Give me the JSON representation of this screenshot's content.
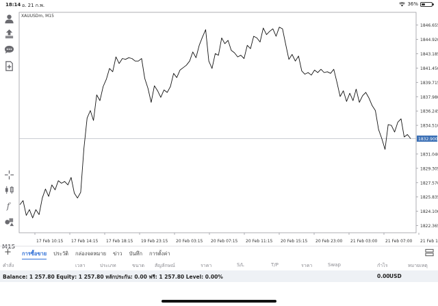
{
  "status_bar": {
    "time": "18:14",
    "date": "อ. 21 ก.พ.",
    "battery": "36%",
    "battery_level": 0.36
  },
  "toolbar": {
    "icons": [
      "account-icon",
      "trade-icon",
      "chat-icon",
      "new-order-icon",
      "crosshair-icon",
      "indicators-icon",
      "function-icon",
      "objects-icon"
    ],
    "timeframe": "M15"
  },
  "chart": {
    "symbol_label": "XAUUSDm, M15",
    "current_price": "1832.900",
    "current_price_value": 1832.9,
    "line_color": "#111111",
    "price_tag_color": "#3a6fb5",
    "chart_data": {
      "type": "line",
      "ylim": [
        1821.5,
        1848.2
      ],
      "y_ticks": [
        "1846.655",
        "1844.920",
        "1843.185",
        "1841.450",
        "1839.715",
        "1837.980",
        "1836.245",
        "1834.510",
        "1832.900",
        "1831.040",
        "1829.305",
        "1827.570",
        "1825.835",
        "1824.100",
        "1822.365"
      ],
      "x_ticks": [
        "17 Feb 10:15",
        "17 Feb 14:15",
        "17 Feb 18:15",
        "19 Feb 23:15",
        "20 Feb 03:15",
        "20 Feb 07:15",
        "20 Feb 11:15",
        "20 Feb 15:15",
        "20 Feb 23:00",
        "21 Feb 03:00",
        "21 Feb 07:00",
        "21 Feb 11:00"
      ],
      "series": [
        {
          "values": [
            1824.9,
            1825.4,
            1823.6,
            1824.3,
            1823.3,
            1824.3,
            1823.7,
            1825.7,
            1826.8,
            1825.9,
            1827.3,
            1826.7,
            1827.8,
            1827.5,
            1827.7,
            1827.3,
            1828.2,
            1826.3,
            1825.7,
            1826.4,
            1831.7,
            1835.4,
            1836.3,
            1835.1,
            1838.2,
            1837.5,
            1839.2,
            1840.1,
            1841.4,
            1841.0,
            1842.8,
            1842.0,
            1842.6,
            1842.5,
            1842.7,
            1842.6,
            1842.3,
            1842.3,
            1842.6,
            1840.2,
            1839.0,
            1837.3,
            1839.3,
            1838.7,
            1837.9,
            1838.8,
            1838.5,
            1839.2,
            1840.8,
            1840.3,
            1841.2,
            1841.5,
            1841.8,
            1842.3,
            1843.4,
            1842.7,
            1844.2,
            1845.2,
            1846.1,
            1842.3,
            1841.4,
            1843.2,
            1843.0,
            1845.1,
            1844.4,
            1844.8,
            1843.6,
            1843.3,
            1842.8,
            1843.0,
            1842.6,
            1844.2,
            1843.8,
            1845.3,
            1845.1,
            1844.6,
            1846.3,
            1845.5,
            1845.9,
            1846.2,
            1845.3,
            1846.4,
            1846.2,
            1844.3,
            1842.5,
            1843.1,
            1842.3,
            1842.9,
            1841.1,
            1840.7,
            1840.9,
            1840.6,
            1841.2,
            1840.9,
            1841.3,
            1840.9,
            1841.0,
            1840.8,
            1841.3,
            1839.7,
            1838.0,
            1838.7,
            1837.4,
            1838.4,
            1837.5,
            1838.9,
            1837.3,
            1838.1,
            1838.5,
            1837.8,
            1836.9,
            1836.3,
            1834.0,
            1832.9,
            1831.6,
            1834.6,
            1834.5,
            1833.7,
            1834.9,
            1835.3,
            1833.1,
            1833.4,
            1832.9
          ]
        }
      ]
    }
  },
  "tabs_row": {
    "add": "+",
    "tabs": [
      "การซื้อขาย",
      "ประวัติ",
      "กล่องจดหมาย",
      "ข่าว",
      "บันทึก",
      "การตั้งค่า"
    ]
  },
  "columns": [
    "คำสั่ง",
    "เวลา",
    "ประเภท",
    "ขนาด",
    "สัญลักษณ์",
    "ราคา",
    "S/L",
    "T/P",
    "ราคา",
    "Swap",
    "กำไร",
    "หมายเหตุ"
  ],
  "balance": {
    "text": "Balance: 1 257.80 Equity: 1 257.80 หลักประกัน: 0.00 ฟรี: 1 257.80 Level: 0.00%",
    "profit": "0.00",
    "currency": "USD"
  }
}
